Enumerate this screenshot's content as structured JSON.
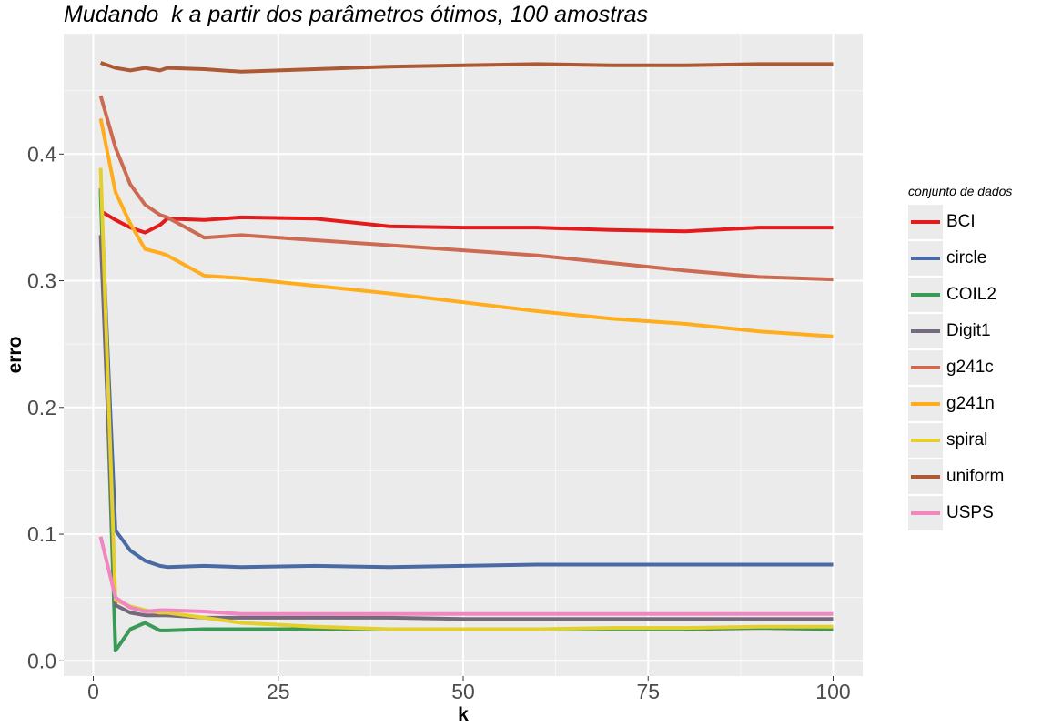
{
  "chart_data": {
    "type": "line",
    "title": "Mudando  k a partir dos parâmetros ótimos, 100 amostras",
    "xlabel": "k",
    "ylabel": "erro",
    "xlim": [
      -4,
      104
    ],
    "ylim": [
      -0.012,
      0.495
    ],
    "x_ticks": [
      0,
      25,
      50,
      75,
      100
    ],
    "x_tick_labels": [
      "0",
      "25",
      "50",
      "75",
      "100"
    ],
    "y_ticks": [
      0.0,
      0.1,
      0.2,
      0.3,
      0.4
    ],
    "y_tick_labels": [
      "0.0",
      "0.1",
      "0.2",
      "0.3",
      "0.4"
    ],
    "grid": true,
    "legend": {
      "title": "conjunto de dados",
      "position": "right"
    },
    "x": [
      1,
      3,
      5,
      7,
      9,
      10,
      15,
      20,
      30,
      40,
      50,
      60,
      70,
      80,
      90,
      100
    ],
    "series": [
      {
        "name": "BCI",
        "color": "#e41a1c",
        "values": [
          0.355,
          0.348,
          0.342,
          0.338,
          0.344,
          0.349,
          0.348,
          0.35,
          0.349,
          0.343,
          0.342,
          0.342,
          0.34,
          0.339,
          0.342,
          0.342
        ]
      },
      {
        "name": "circle",
        "color": "#4a6aa5",
        "values": [
          0.373,
          0.103,
          0.087,
          0.079,
          0.075,
          0.074,
          0.075,
          0.074,
          0.075,
          0.074,
          0.075,
          0.076,
          0.076,
          0.076,
          0.076,
          0.076
        ]
      },
      {
        "name": "COIL2",
        "color": "#3a9a56",
        "values": [
          0.37,
          0.008,
          0.025,
          0.03,
          0.024,
          0.024,
          0.025,
          0.025,
          0.025,
          0.025,
          0.025,
          0.025,
          0.025,
          0.025,
          0.026,
          0.025
        ]
      },
      {
        "name": "Digit1",
        "color": "#756a7b",
        "values": [
          0.336,
          0.044,
          0.038,
          0.036,
          0.036,
          0.036,
          0.034,
          0.034,
          0.034,
          0.034,
          0.033,
          0.033,
          0.033,
          0.033,
          0.033,
          0.033
        ]
      },
      {
        "name": "g241c",
        "color": "#cc6a52",
        "values": [
          0.446,
          0.405,
          0.376,
          0.36,
          0.352,
          0.35,
          0.334,
          0.336,
          0.332,
          0.328,
          0.324,
          0.32,
          0.314,
          0.308,
          0.303,
          0.301
        ]
      },
      {
        "name": "g241n",
        "color": "#ffad1c",
        "values": [
          0.428,
          0.37,
          0.345,
          0.325,
          0.322,
          0.32,
          0.304,
          0.302,
          0.296,
          0.29,
          0.283,
          0.276,
          0.27,
          0.266,
          0.26,
          0.256
        ]
      },
      {
        "name": "spiral",
        "color": "#e4cf2c",
        "values": [
          0.389,
          0.048,
          0.043,
          0.04,
          0.038,
          0.038,
          0.034,
          0.03,
          0.027,
          0.025,
          0.025,
          0.025,
          0.026,
          0.026,
          0.027,
          0.027
        ]
      },
      {
        "name": "uniform",
        "color": "#ad5a34",
        "values": [
          0.472,
          0.468,
          0.466,
          0.468,
          0.466,
          0.468,
          0.467,
          0.465,
          0.467,
          0.469,
          0.47,
          0.471,
          0.47,
          0.47,
          0.471,
          0.471
        ]
      },
      {
        "name": "USPS",
        "color": "#f186c0",
        "values": [
          0.098,
          0.05,
          0.042,
          0.039,
          0.04,
          0.04,
          0.039,
          0.037,
          0.037,
          0.037,
          0.037,
          0.037,
          0.037,
          0.037,
          0.037,
          0.037
        ]
      }
    ]
  }
}
